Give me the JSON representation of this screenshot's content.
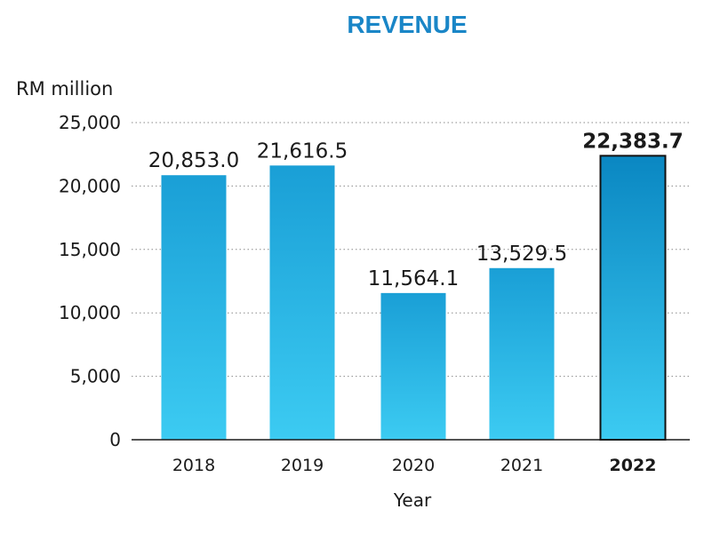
{
  "chart_data": {
    "type": "bar",
    "title": "REVENUE",
    "unit_label": "RM million",
    "xlabel": "Year",
    "ylabel": "",
    "categories": [
      "2018",
      "2019",
      "2020",
      "2021",
      "2022"
    ],
    "values": [
      20853.0,
      21616.5,
      11564.1,
      13529.5,
      22383.7
    ],
    "value_labels": [
      "20,853.0",
      "21,616.5",
      "11,564.1",
      "13,529.5",
      "22,383.7"
    ],
    "highlight_category": "2022",
    "ylim": [
      0,
      25000
    ],
    "yticks": [
      0,
      5000,
      10000,
      15000,
      20000,
      25000
    ],
    "ytick_labels": [
      "0",
      "5,000",
      "10,000",
      "15,000",
      "20,000",
      "25,000"
    ],
    "grid": true,
    "grid_style": "dotted horizontal",
    "bar_colors": {
      "top": "#1a9fd6",
      "bottom": "#3ccbf2",
      "highlight_top": "#0a87c2",
      "highlight_bottom": "#3ccbf2",
      "highlight_border": "#111111"
    },
    "title_color": "#1a86c7"
  }
}
